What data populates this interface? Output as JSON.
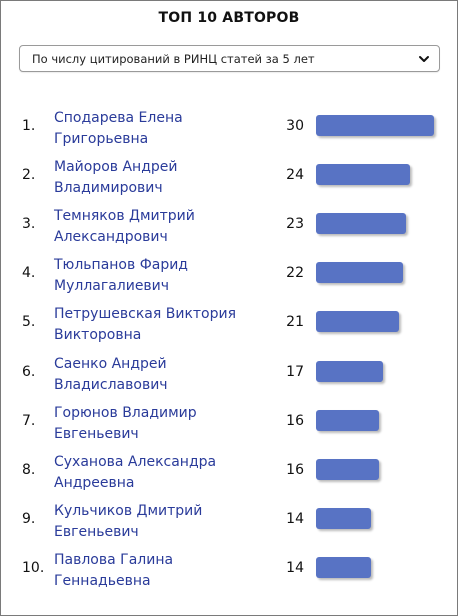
{
  "title": "ТОП 10 АВТОРОВ",
  "dropdown": {
    "selected": "По числу цитирований в РИНЦ статей за 5 лет"
  },
  "colors": {
    "bar": "#5873c4",
    "link": "#2a3b9a"
  },
  "authors": [
    {
      "rank": "1.",
      "name_line1": "Сподарева Елена",
      "name_line2": "Григорьевна",
      "count": "30",
      "value": 30
    },
    {
      "rank": "2.",
      "name_line1": "Майоров Андрей",
      "name_line2": "Владимирович",
      "count": "24",
      "value": 24
    },
    {
      "rank": "3.",
      "name_line1": "Темняков Дмитрий",
      "name_line2": "Александрович",
      "count": "23",
      "value": 23
    },
    {
      "rank": "4.",
      "name_line1": "Тюльпанов Фарид",
      "name_line2": "Муллагалиевич",
      "count": "22",
      "value": 22
    },
    {
      "rank": "5.",
      "name_line1": "Петрушевская Виктория",
      "name_line2": "Викторовна",
      "count": "21",
      "value": 21
    },
    {
      "rank": "6.",
      "name_line1": "Саенко Андрей",
      "name_line2": "Владиславович",
      "count": "17",
      "value": 17
    },
    {
      "rank": "7.",
      "name_line1": "Горюнов Владимир",
      "name_line2": "Евгеньевич",
      "count": "16",
      "value": 16
    },
    {
      "rank": "8.",
      "name_line1": "Суханова Александра",
      "name_line2": "Андреевна",
      "count": "16",
      "value": 16
    },
    {
      "rank": "9.",
      "name_line1": "Кульчиков Дмитрий",
      "name_line2": "Евгеньевич",
      "count": "14",
      "value": 14
    },
    {
      "rank": "10.",
      "name_line1": "Павлова Галина",
      "name_line2": "Геннадьевна",
      "count": "14",
      "value": 14
    }
  ]
}
